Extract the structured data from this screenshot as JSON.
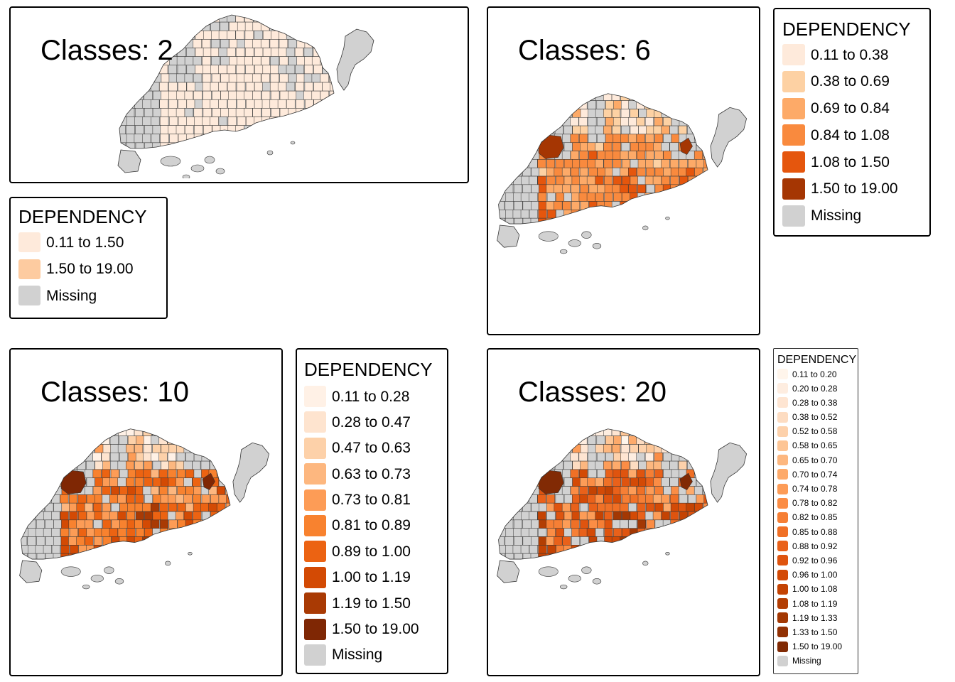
{
  "missing_color": "#d1d1d1",
  "island_stroke": "#333333",
  "panels": [
    {
      "id": "classes-2",
      "title": "Classes: 2",
      "legend": {
        "title": "DEPENDENCY",
        "entries": [
          {
            "label": "0.11 to 1.50",
            "color": "#feeadb"
          },
          {
            "label": "1.50 to 19.00",
            "color": "#fdcba0"
          },
          {
            "label": "Missing",
            "color": "#d1d1d1"
          }
        ]
      }
    },
    {
      "id": "classes-6",
      "title": "Classes: 6",
      "legend": {
        "title": "DEPENDENCY",
        "entries": [
          {
            "label": "0.11 to 0.38",
            "color": "#feeadb"
          },
          {
            "label": "0.38 to 0.69",
            "color": "#fdd1a3"
          },
          {
            "label": "0.69 to 0.84",
            "color": "#fdaa68"
          },
          {
            "label": "0.84 to 1.08",
            "color": "#f98a3e"
          },
          {
            "label": "1.08 to 1.50",
            "color": "#e5560d"
          },
          {
            "label": "1.50 to 19.00",
            "color": "#a53603"
          },
          {
            "label": "Missing",
            "color": "#d1d1d1"
          }
        ]
      }
    },
    {
      "id": "classes-10",
      "title": "Classes: 10",
      "legend": {
        "title": "DEPENDENCY",
        "entries": [
          {
            "label": "0.11 to 0.28",
            "color": "#fff1e6"
          },
          {
            "label": "0.28 to 0.47",
            "color": "#fee4cf"
          },
          {
            "label": "0.47 to 0.63",
            "color": "#fdd1a9"
          },
          {
            "label": "0.63 to 0.73",
            "color": "#fdb77f"
          },
          {
            "label": "0.73 to 0.81",
            "color": "#fd9c56"
          },
          {
            "label": "0.81 to 0.89",
            "color": "#f8822f"
          },
          {
            "label": "0.89 to 1.00",
            "color": "#ec6312"
          },
          {
            "label": "1.00 to 1.19",
            "color": "#d34a04"
          },
          {
            "label": "1.19 to 1.50",
            "color": "#a93a04"
          },
          {
            "label": "1.50 to 19.00",
            "color": "#7f2704"
          },
          {
            "label": "Missing",
            "color": "#d1d1d1"
          }
        ]
      }
    },
    {
      "id": "classes-20",
      "title": "Classes: 20",
      "legend": {
        "title": "DEPENDENCY",
        "entries": [
          {
            "label": "0.11 to 0.20",
            "color": "#fff5eb"
          },
          {
            "label": "0.20 to 0.28",
            "color": "#feede0"
          },
          {
            "label": "0.28 to 0.38",
            "color": "#fee5d2"
          },
          {
            "label": "0.38 to 0.52",
            "color": "#fddcc1"
          },
          {
            "label": "0.52 to 0.58",
            "color": "#fdd1ab"
          },
          {
            "label": "0.58 to 0.65",
            "color": "#fdc595"
          },
          {
            "label": "0.65 to 0.70",
            "color": "#fdb77f"
          },
          {
            "label": "0.70 to 0.74",
            "color": "#fdaa6b"
          },
          {
            "label": "0.74 to 0.78",
            "color": "#fd9c57"
          },
          {
            "label": "0.78 to 0.82",
            "color": "#fb8d45"
          },
          {
            "label": "0.82 to 0.85",
            "color": "#f67f35"
          },
          {
            "label": "0.85 to 0.88",
            "color": "#f07026"
          },
          {
            "label": "0.88 to 0.92",
            "color": "#e9611a"
          },
          {
            "label": "0.92 to 0.96",
            "color": "#df540f"
          },
          {
            "label": "0.96 to 1.00",
            "color": "#d34a06"
          },
          {
            "label": "1.00 to 1.08",
            "color": "#c44303"
          },
          {
            "label": "1.08 to 1.19",
            "color": "#b33e03"
          },
          {
            "label": "1.19 to 1.33",
            "color": "#a33803"
          },
          {
            "label": "1.33 to 1.50",
            "color": "#923104"
          },
          {
            "label": "1.50 to 19.00",
            "color": "#812a04"
          },
          {
            "label": "Missing",
            "color": "#d1d1d1"
          }
        ]
      }
    }
  ]
}
